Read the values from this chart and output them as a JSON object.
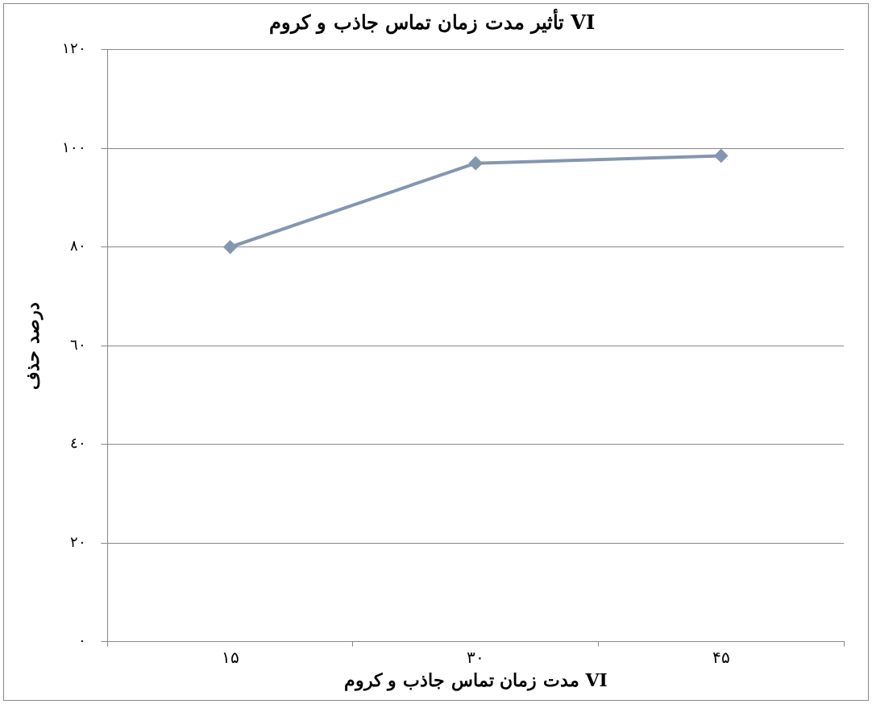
{
  "chart_data": {
    "type": "line",
    "title": "تأثیر مدت زمان تماس جاذب و کروم VI",
    "xlabel": "مدت زمان تماس جاذب و کروم VI",
    "ylabel": "درصد حذف",
    "categories": [
      "۱۵",
      "۳۰",
      "۴۵"
    ],
    "series": [
      {
        "color": "#8496b0",
        "values": [
          80,
          97,
          98.5
        ]
      }
    ],
    "ylim": [
      0,
      120
    ],
    "yticks": [
      {
        "value": 0,
        "label": "٠"
      },
      {
        "value": 20,
        "label": "٢٠"
      },
      {
        "value": 40,
        "label": "٤٠"
      },
      {
        "value": 60,
        "label": "٦٠"
      },
      {
        "value": 80,
        "label": "٨٠"
      },
      {
        "value": 100,
        "label": "١٠٠"
      },
      {
        "value": 120,
        "label": "١٢٠"
      }
    ],
    "grid": "y",
    "legend": false,
    "marker": "diamond",
    "line_style": "solid"
  }
}
